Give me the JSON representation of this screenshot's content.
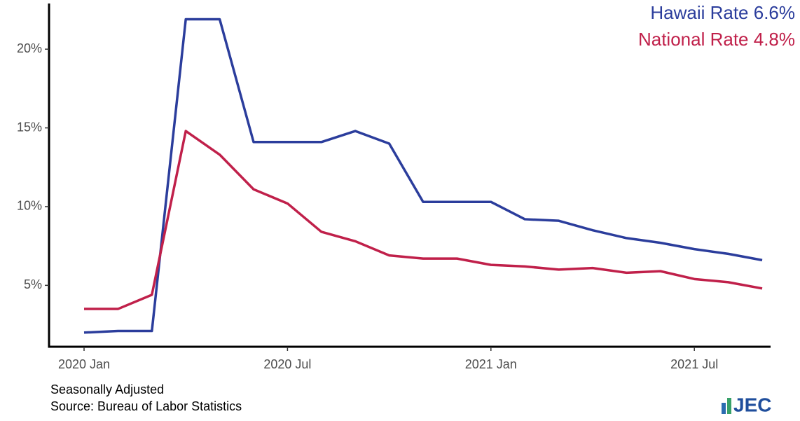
{
  "chart_data": {
    "type": "line",
    "categories": [
      "2020 Jan",
      null,
      null,
      null,
      null,
      null,
      "2020 Jul",
      null,
      null,
      null,
      null,
      null,
      "2021 Jan",
      null,
      null,
      null,
      null,
      null,
      "2021 Jul",
      null,
      null
    ],
    "series": [
      {
        "name": "Hawaii Rate 6.6%",
        "color": "#2b3d9c",
        "values": [
          2.0,
          2.1,
          2.1,
          21.9,
          21.9,
          14.1,
          14.1,
          14.1,
          14.8,
          14.0,
          10.3,
          10.3,
          10.3,
          9.2,
          9.1,
          8.5,
          8.0,
          7.7,
          7.3,
          7.0,
          6.6
        ]
      },
      {
        "name": "National Rate 4.8%",
        "color": "#c0204a",
        "values": [
          3.5,
          3.5,
          4.4,
          14.8,
          13.3,
          11.1,
          10.2,
          8.4,
          7.8,
          6.9,
          6.7,
          6.7,
          6.3,
          6.2,
          6.0,
          6.1,
          5.8,
          5.9,
          5.4,
          5.2,
          4.8
        ]
      }
    ],
    "ylim": [
      1.1,
      22.9
    ],
    "yticks": [
      {
        "value": 5,
        "label": "5%"
      },
      {
        "value": 10,
        "label": "10%"
      },
      {
        "value": 15,
        "label": "15%"
      },
      {
        "value": 20,
        "label": "20%"
      }
    ],
    "grid": false,
    "legend": "top-right",
    "notes": [
      "Seasonally Adjusted",
      "Source: Bureau of Labor Statistics"
    ],
    "logo_text": "JEC"
  }
}
